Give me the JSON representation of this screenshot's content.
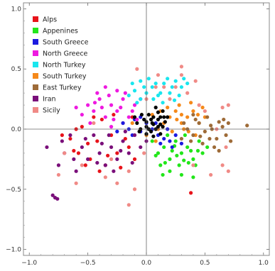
{
  "chart_data": {
    "type": "scatter",
    "title": "",
    "xlabel": "",
    "ylabel": "",
    "xlim": [
      -1.05,
      1.05
    ],
    "ylim": [
      -1.05,
      1.05
    ],
    "xticks": [
      -1.0,
      -0.5,
      0.0,
      0.5,
      1.0
    ],
    "yticks": [
      -1.0,
      -0.5,
      0.0,
      0.5,
      1.0
    ],
    "xtick_labels": [
      "−1.0",
      "−0.5",
      "0.0",
      "0.5",
      "1.0"
    ],
    "ytick_labels": [
      "−1.0",
      "−0.5",
      "0.0",
      "0.5",
      "1.0"
    ],
    "axes_at_origin": true,
    "grid": false,
    "frame": true,
    "legend_position": "top-left",
    "series": [
      {
        "name": "Alps",
        "color": "#e8131a",
        "points": [
          [
            -0.72,
            -0.05
          ],
          [
            -0.62,
            -0.18
          ],
          [
            -0.55,
            0.02
          ],
          [
            -0.48,
            -0.25
          ],
          [
            -0.42,
            -0.1
          ],
          [
            -0.38,
            0.08
          ],
          [
            -0.35,
            -0.3
          ],
          [
            -0.3,
            -0.05
          ],
          [
            -0.28,
            0.12
          ],
          [
            -0.25,
            -0.2
          ],
          [
            -0.2,
            0.05
          ],
          [
            -0.15,
            -0.15
          ],
          [
            -0.12,
            0.1
          ],
          [
            -0.5,
            -0.12
          ],
          [
            -0.45,
            0.1
          ],
          [
            -0.6,
            0.0
          ],
          [
            -0.4,
            -0.35
          ],
          [
            -0.33,
            -0.22
          ],
          [
            -0.22,
            -0.32
          ],
          [
            -0.18,
            -0.08
          ],
          [
            0.38,
            -0.53
          ],
          [
            -0.52,
            -0.3
          ],
          [
            -0.65,
            -0.08
          ],
          [
            -0.1,
            -0.25
          ],
          [
            -0.58,
            -0.2
          ]
        ]
      },
      {
        "name": "Appenines",
        "color": "#22e61a",
        "points": [
          [
            0.05,
            -0.1
          ],
          [
            0.1,
            -0.2
          ],
          [
            0.15,
            -0.15
          ],
          [
            0.2,
            -0.25
          ],
          [
            0.25,
            -0.1
          ],
          [
            0.3,
            -0.2
          ],
          [
            0.35,
            -0.15
          ],
          [
            0.4,
            -0.25
          ],
          [
            0.45,
            -0.1
          ],
          [
            0.12,
            -0.3
          ],
          [
            0.18,
            -0.05
          ],
          [
            0.22,
            -0.18
          ],
          [
            0.28,
            -0.3
          ],
          [
            0.33,
            -0.05
          ],
          [
            0.38,
            -0.18
          ],
          [
            0.42,
            -0.3
          ],
          [
            0.08,
            -0.22
          ],
          [
            0.16,
            -0.28
          ],
          [
            0.26,
            -0.22
          ],
          [
            0.36,
            -0.28
          ],
          [
            0.48,
            -0.2
          ],
          [
            0.52,
            -0.15
          ],
          [
            0.14,
            -0.38
          ],
          [
            0.2,
            -0.35
          ],
          [
            0.3,
            -0.38
          ],
          [
            0.4,
            -0.4
          ],
          [
            0.24,
            -0.14
          ],
          [
            0.32,
            -0.26
          ],
          [
            0.44,
            -0.18
          ]
        ]
      },
      {
        "name": "South Greece",
        "color": "#1c1ae0",
        "points": [
          [
            -0.2,
            0.05
          ],
          [
            -0.15,
            0.0
          ],
          [
            -0.1,
            0.08
          ],
          [
            -0.05,
            -0.02
          ],
          [
            0.0,
            0.05
          ],
          [
            0.05,
            0.0
          ],
          [
            0.1,
            -0.05
          ],
          [
            0.15,
            -0.08
          ],
          [
            0.2,
            -0.1
          ],
          [
            0.25,
            -0.05
          ],
          [
            -0.12,
            -0.05
          ],
          [
            -0.05,
            0.1
          ],
          [
            0.08,
            0.05
          ],
          [
            0.12,
            -0.12
          ],
          [
            0.18,
            0.0
          ],
          [
            0.3,
            -0.12
          ],
          [
            0.22,
            -0.15
          ],
          [
            -0.25,
            -0.02
          ]
        ]
      },
      {
        "name": "North Greece",
        "color": "#ee1ae0",
        "points": [
          [
            -0.5,
            0.2
          ],
          [
            -0.45,
            0.15
          ],
          [
            -0.4,
            0.25
          ],
          [
            -0.35,
            0.1
          ],
          [
            -0.3,
            0.2
          ],
          [
            -0.25,
            0.15
          ],
          [
            -0.2,
            0.25
          ],
          [
            -0.15,
            0.1
          ],
          [
            -0.1,
            0.2
          ],
          [
            -0.48,
            0.05
          ],
          [
            -0.42,
            0.3
          ],
          [
            -0.38,
            0.18
          ],
          [
            -0.32,
            0.28
          ],
          [
            -0.28,
            0.08
          ],
          [
            -0.22,
            0.18
          ],
          [
            -0.18,
            0.3
          ],
          [
            -0.12,
            0.15
          ],
          [
            -0.05,
            0.25
          ],
          [
            -0.55,
            0.12
          ],
          [
            -0.6,
            0.18
          ],
          [
            -0.35,
            0.35
          ],
          [
            -0.25,
            0.32
          ],
          [
            -0.08,
            0.08
          ],
          [
            -0.44,
            0.22
          ],
          [
            -0.3,
            0.02
          ]
        ]
      },
      {
        "name": "North Turkey",
        "color": "#1ae6ee",
        "points": [
          [
            -0.15,
            0.28
          ],
          [
            -0.1,
            0.32
          ],
          [
            -0.05,
            0.25
          ],
          [
            0.0,
            0.3
          ],
          [
            0.05,
            0.35
          ],
          [
            0.1,
            0.28
          ],
          [
            0.15,
            0.38
          ],
          [
            0.2,
            0.3
          ],
          [
            0.25,
            0.4
          ],
          [
            0.3,
            0.35
          ],
          [
            -0.12,
            0.38
          ],
          [
            -0.05,
            0.4
          ],
          [
            0.02,
            0.42
          ],
          [
            0.08,
            0.38
          ],
          [
            0.12,
            0.3
          ],
          [
            0.18,
            0.42
          ],
          [
            0.22,
            0.35
          ],
          [
            0.28,
            0.28
          ],
          [
            0.35,
            0.38
          ],
          [
            -0.02,
            0.35
          ],
          [
            0.06,
            0.25
          ],
          [
            0.14,
            0.22
          ],
          [
            -0.08,
            0.22
          ],
          [
            0.32,
            0.42
          ],
          [
            0.24,
            0.24
          ]
        ]
      },
      {
        "name": "South Turkey",
        "color": "#f5891a",
        "points": [
          [
            0.15,
            0.05
          ],
          [
            0.2,
            0.1
          ],
          [
            0.25,
            0.15
          ],
          [
            0.3,
            0.05
          ],
          [
            0.35,
            0.1
          ],
          [
            0.4,
            0.15
          ],
          [
            0.45,
            0.05
          ],
          [
            0.5,
            0.1
          ],
          [
            0.1,
            0.0
          ],
          [
            0.18,
            0.18
          ],
          [
            0.22,
            -0.02
          ],
          [
            0.28,
            0.2
          ],
          [
            0.32,
            0.0
          ],
          [
            0.38,
            0.22
          ],
          [
            0.42,
            -0.05
          ],
          [
            0.48,
            0.18
          ],
          [
            -0.05,
            0.0
          ],
          [
            0.0,
            -0.05
          ],
          [
            0.05,
            0.12
          ],
          [
            0.12,
            0.15
          ],
          [
            0.3,
            0.12
          ],
          [
            0.26,
            0.08
          ],
          [
            0.36,
            -0.02
          ],
          [
            0.44,
            0.12
          ],
          [
            -0.12,
            0.05
          ],
          [
            0.08,
            -0.1
          ]
        ]
      },
      {
        "name": "East Turkey",
        "color": "#9e6b38",
        "points": [
          [
            0.35,
            0.0
          ],
          [
            0.4,
            -0.05
          ],
          [
            0.45,
            0.05
          ],
          [
            0.5,
            -0.02
          ],
          [
            0.55,
            0.03
          ],
          [
            0.6,
            -0.08
          ],
          [
            0.65,
            0.02
          ],
          [
            0.7,
            0.05
          ],
          [
            0.38,
            -0.1
          ],
          [
            0.42,
            0.08
          ],
          [
            0.48,
            -0.12
          ],
          [
            0.52,
            0.1
          ],
          [
            0.58,
            -0.15
          ],
          [
            0.62,
            0.06
          ],
          [
            0.68,
            -0.05
          ],
          [
            0.3,
            -0.08
          ],
          [
            0.32,
            0.05
          ],
          [
            0.46,
            -0.06
          ],
          [
            0.54,
            -0.08
          ],
          [
            0.72,
            -0.1
          ],
          [
            0.66,
            0.08
          ],
          [
            0.4,
            0.12
          ],
          [
            0.56,
            0.0
          ],
          [
            0.62,
            -0.18
          ],
          [
            0.86,
            0.03
          ]
        ]
      },
      {
        "name": "Iran",
        "color": "#7a0f7a",
        "points": [
          [
            -0.85,
            -0.15
          ],
          [
            -0.75,
            -0.3
          ],
          [
            -0.7,
            -0.2
          ],
          [
            -0.65,
            -0.05
          ],
          [
            -0.6,
            -0.35
          ],
          [
            -0.55,
            -0.15
          ],
          [
            -0.5,
            -0.25
          ],
          [
            -0.45,
            -0.05
          ],
          [
            -0.4,
            -0.2
          ],
          [
            -0.35,
            -0.3
          ],
          [
            -0.3,
            -0.15
          ],
          [
            -0.25,
            -0.25
          ],
          [
            -0.2,
            -0.1
          ],
          [
            -0.15,
            -0.2
          ],
          [
            -0.1,
            -0.05
          ],
          [
            -0.05,
            -0.15
          ],
          [
            0.0,
            -0.1
          ],
          [
            -0.8,
            -0.55
          ],
          [
            -0.78,
            -0.57
          ],
          [
            -0.76,
            -0.58
          ],
          [
            -0.72,
            -0.1
          ],
          [
            -0.62,
            -0.25
          ],
          [
            -0.52,
            -0.08
          ],
          [
            -0.42,
            -0.28
          ],
          [
            -0.32,
            -0.05
          ],
          [
            -0.22,
            -0.18
          ],
          [
            -0.12,
            -0.28
          ],
          [
            -0.38,
            -0.12
          ],
          [
            -0.28,
            -0.35
          ],
          [
            -0.18,
            -0.02
          ]
        ]
      },
      {
        "name": "Sicily",
        "color": "#f08a86",
        "points": [
          [
            -0.75,
            -0.38
          ],
          [
            -0.7,
            -0.2
          ],
          [
            -0.6,
            -0.45
          ],
          [
            -0.55,
            -0.3
          ],
          [
            -0.45,
            0.05
          ],
          [
            -0.35,
            -0.4
          ],
          [
            -0.25,
            -0.45
          ],
          [
            -0.15,
            -0.35
          ],
          [
            -0.1,
            -0.5
          ],
          [
            -0.15,
            -0.63
          ],
          [
            0.0,
            0.25
          ],
          [
            0.1,
            0.45
          ],
          [
            0.15,
            0.35
          ],
          [
            0.2,
            0.25
          ],
          [
            0.25,
            0.35
          ],
          [
            0.3,
            0.45
          ],
          [
            0.35,
            0.3
          ],
          [
            0.5,
            0.15
          ],
          [
            0.6,
            0.0
          ],
          [
            0.65,
            -0.3
          ],
          [
            0.7,
            -0.35
          ],
          [
            0.68,
            -0.15
          ],
          [
            0.7,
            0.2
          ],
          [
            0.65,
            0.18
          ],
          [
            -0.08,
            0.5
          ],
          [
            0.3,
            0.52
          ],
          [
            0.08,
            0.35
          ],
          [
            0.4,
            -0.3
          ],
          [
            0.45,
            0.2
          ],
          [
            -0.02,
            -0.2
          ],
          [
            -0.3,
            -0.25
          ],
          [
            0.55,
            -0.38
          ],
          [
            0.42,
            0.4
          ]
        ]
      },
      {
        "name": "",
        "color": "#000000",
        "points": [
          [
            -0.05,
            0.0
          ],
          [
            0.0,
            0.02
          ],
          [
            0.05,
            0.05
          ],
          [
            0.1,
            0.08
          ],
          [
            0.15,
            0.1
          ],
          [
            -0.02,
            0.08
          ],
          [
            0.02,
            0.12
          ],
          [
            0.08,
            0.0
          ],
          [
            0.12,
            0.04
          ],
          [
            -0.08,
            0.05
          ],
          [
            0.06,
            0.1
          ],
          [
            0.0,
            0.06
          ],
          [
            0.04,
            -0.02
          ],
          [
            0.1,
            0.14
          ],
          [
            0.14,
            0.02
          ],
          [
            -0.04,
            0.12
          ],
          [
            0.08,
            0.18
          ],
          [
            0.12,
            -0.04
          ],
          [
            0.16,
            0.06
          ],
          [
            -0.06,
            -0.02
          ],
          [
            0.02,
            0.0
          ],
          [
            0.06,
            0.04
          ],
          [
            0.1,
            0.02
          ],
          [
            0.04,
            0.08
          ],
          [
            0.0,
            -0.04
          ],
          [
            0.18,
            0.1
          ],
          [
            0.14,
            0.15
          ],
          [
            -0.1,
            0.1
          ],
          [
            0.06,
            -0.06
          ],
          [
            0.12,
            0.1
          ]
        ]
      }
    ]
  }
}
